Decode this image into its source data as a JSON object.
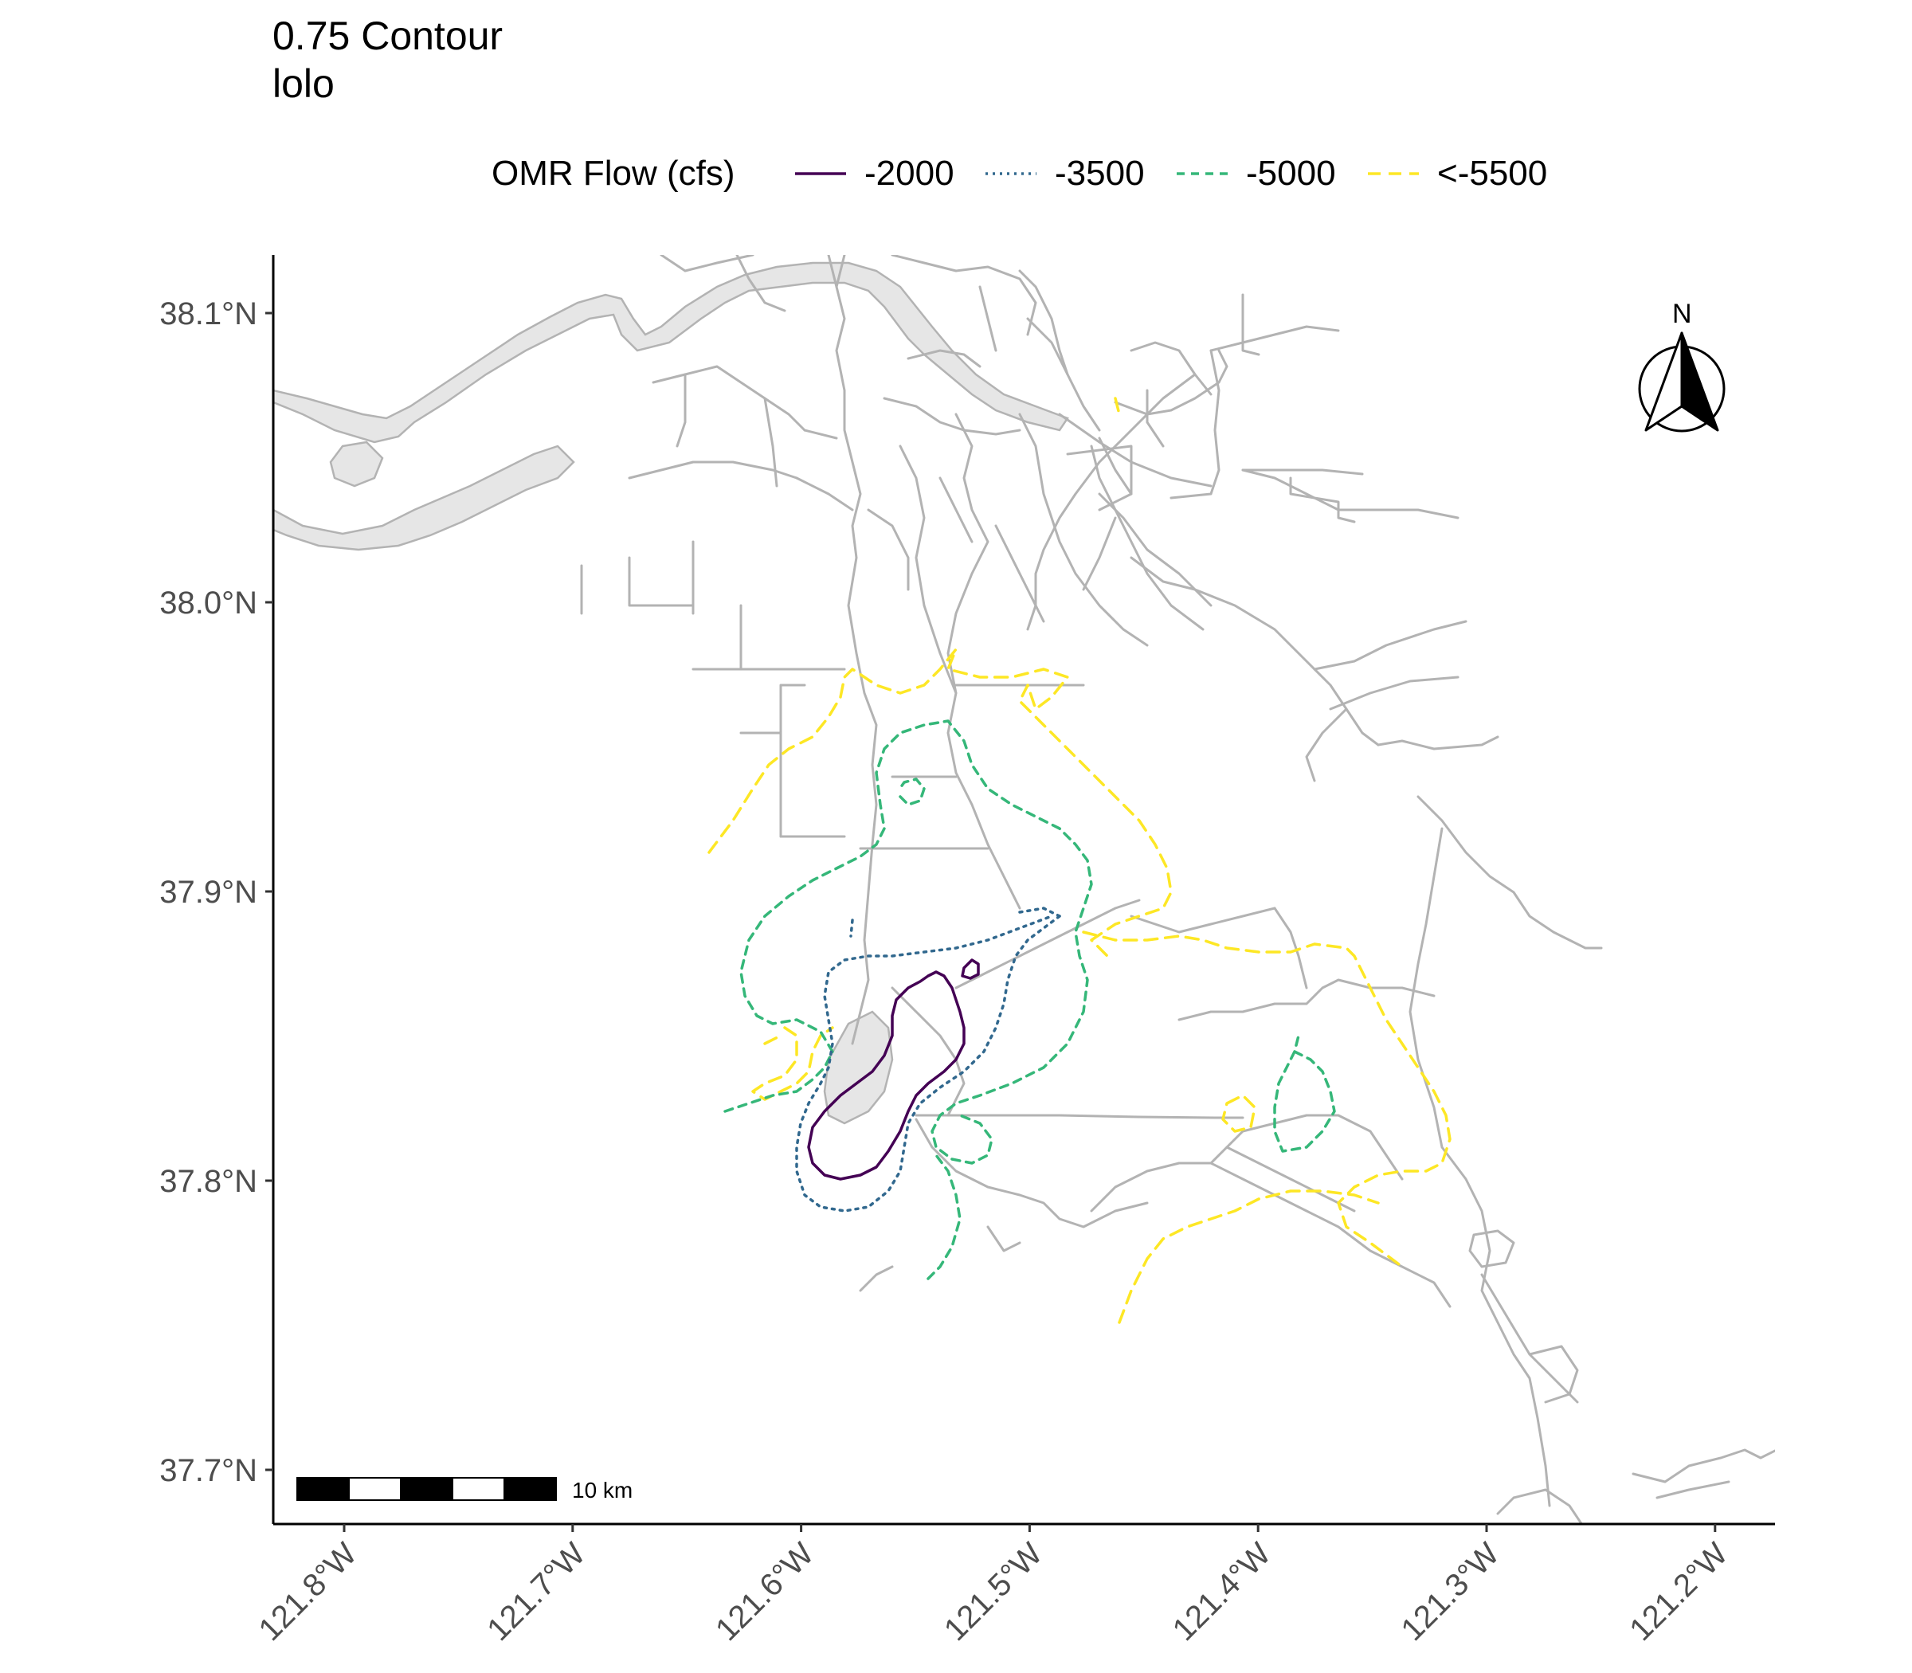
{
  "title": {
    "line1": "0.75 Contour",
    "line2": "lolo"
  },
  "legend": {
    "title": "OMR Flow (cfs)",
    "items": [
      {
        "label": "-2000",
        "color": "#440154",
        "dash": "solid"
      },
      {
        "label": "-3500",
        "color": "#31688e",
        "dash": "dotted"
      },
      {
        "label": "-5000",
        "color": "#35b779",
        "dash": "dashed"
      },
      {
        "label": "<-5500",
        "color": "#fde725",
        "dash": "longdash"
      }
    ]
  },
  "axes": {
    "x_ticks": [
      {
        "value": -121.8,
        "label": "121.8°W"
      },
      {
        "value": -121.7,
        "label": "121.7°W"
      },
      {
        "value": -121.6,
        "label": "121.6°W"
      },
      {
        "value": -121.5,
        "label": "121.5°W"
      },
      {
        "value": -121.4,
        "label": "121.4°W"
      },
      {
        "value": -121.3,
        "label": "121.3°W"
      },
      {
        "value": -121.2,
        "label": "121.2°W"
      }
    ],
    "y_ticks": [
      {
        "value": 38.1,
        "label": "38.1°N"
      },
      {
        "value": 38.0,
        "label": "38.0°N"
      },
      {
        "value": 37.9,
        "label": "37.9°N"
      },
      {
        "value": 37.8,
        "label": "37.8°N"
      },
      {
        "value": 37.7,
        "label": "37.7°N"
      }
    ],
    "x_range": [
      -121.83,
      -121.17
    ],
    "y_range": [
      37.68,
      38.12
    ]
  },
  "scale_bar": {
    "label": "10 km"
  },
  "north_arrow": {
    "label": "N"
  },
  "colors": {
    "water_line": "#b3b3b3",
    "water_fill": "#e6e6e6",
    "axis": "#000000"
  }
}
